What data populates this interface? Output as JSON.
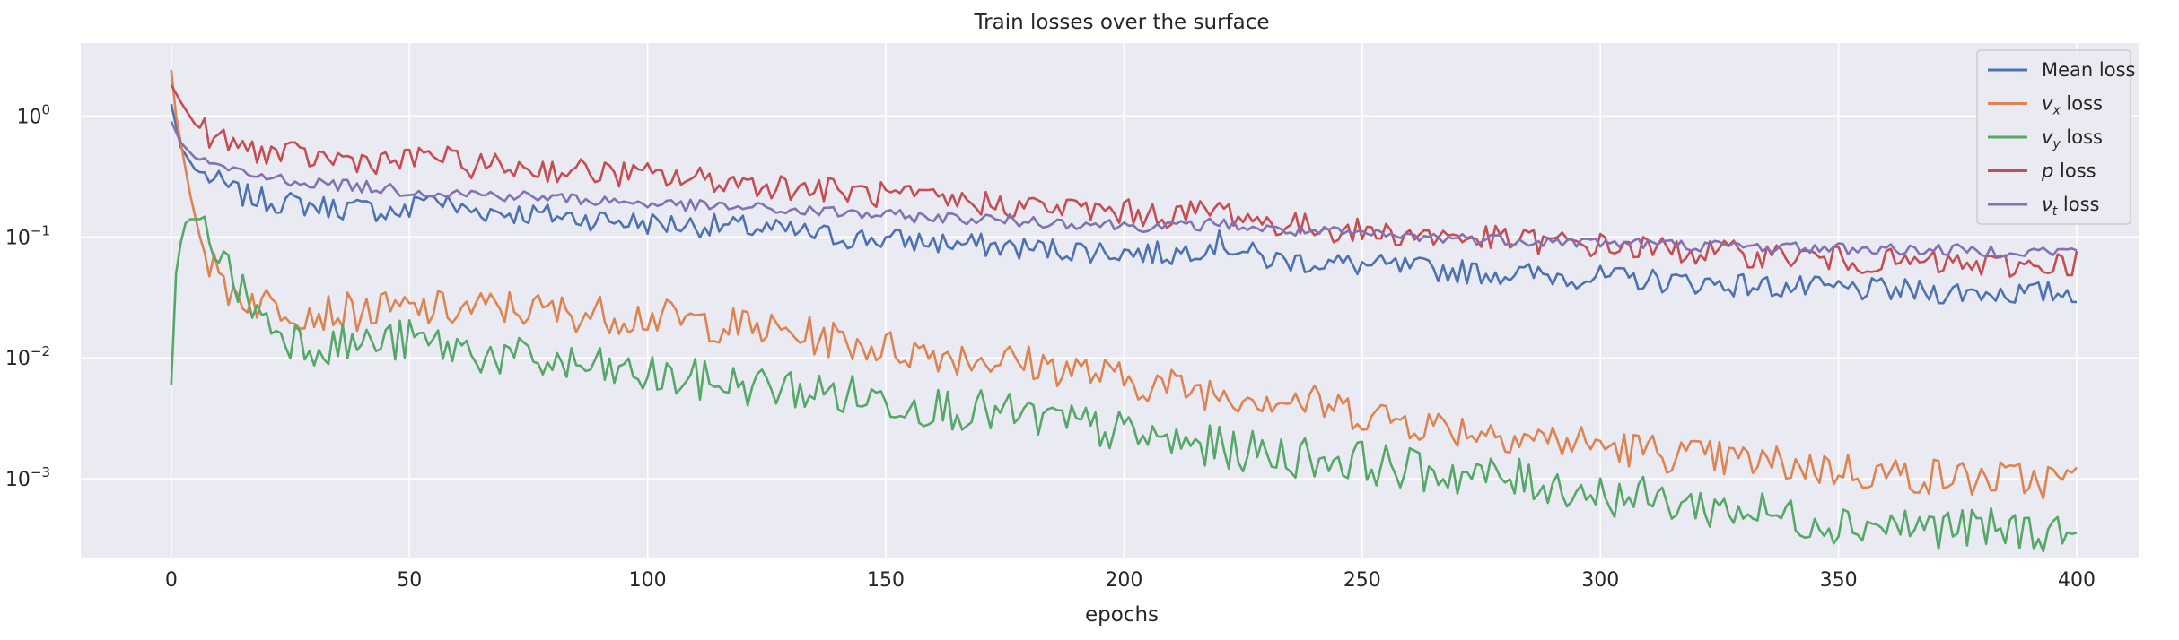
{
  "chart_data": {
    "type": "line",
    "title": "Train losses over the surface",
    "xlabel": "epochs",
    "ylabel": "",
    "yscale": "log",
    "xlim": [
      -19,
      413
    ],
    "ylim": [
      0.00022,
      4
    ],
    "grid": true,
    "legend_position": "top-right",
    "x_ticks": [
      0,
      50,
      100,
      150,
      200,
      250,
      300,
      350,
      400
    ],
    "y_ticks": [
      {
        "value": 1,
        "label": "10",
        "exp": "0"
      },
      {
        "value": 0.1,
        "label": "10",
        "exp": "−1"
      },
      {
        "value": 0.01,
        "label": "10",
        "exp": "−2"
      },
      {
        "value": 0.001,
        "label": "10",
        "exp": "−3"
      }
    ],
    "series": [
      {
        "key": "mean",
        "label": "Mean loss",
        "sym": "",
        "sub": "",
        "color": "#4c72b0",
        "points": [
          [
            0,
            1.25
          ],
          [
            2,
            0.55
          ],
          [
            5,
            0.36
          ],
          [
            10,
            0.28
          ],
          [
            15,
            0.22
          ],
          [
            20,
            0.2
          ],
          [
            30,
            0.18
          ],
          [
            40,
            0.17
          ],
          [
            50,
            0.16
          ],
          [
            53,
            0.23
          ],
          [
            60,
            0.17
          ],
          [
            70,
            0.16
          ],
          [
            80,
            0.15
          ],
          [
            90,
            0.14
          ],
          [
            100,
            0.13
          ],
          [
            110,
            0.125
          ],
          [
            120,
            0.12
          ],
          [
            130,
            0.11
          ],
          [
            140,
            0.1
          ],
          [
            150,
            0.095
          ],
          [
            160,
            0.09
          ],
          [
            170,
            0.085
          ],
          [
            180,
            0.08
          ],
          [
            190,
            0.078
          ],
          [
            200,
            0.075
          ],
          [
            210,
            0.072
          ],
          [
            220,
            0.09
          ],
          [
            230,
            0.065
          ],
          [
            240,
            0.062
          ],
          [
            250,
            0.058
          ],
          [
            260,
            0.055
          ],
          [
            270,
            0.052
          ],
          [
            280,
            0.05
          ],
          [
            290,
            0.048
          ],
          [
            300,
            0.046
          ],
          [
            310,
            0.044
          ],
          [
            320,
            0.042
          ],
          [
            330,
            0.04
          ],
          [
            340,
            0.038
          ],
          [
            350,
            0.037
          ],
          [
            360,
            0.036
          ],
          [
            370,
            0.035
          ],
          [
            380,
            0.035
          ],
          [
            390,
            0.034
          ],
          [
            400,
            0.035
          ]
        ]
      },
      {
        "key": "vx",
        "label": "",
        "sym": "v",
        "sub": "x",
        "color": "#dd8452",
        "points": [
          [
            0,
            2.4
          ],
          [
            1,
            1.0
          ],
          [
            2,
            0.6
          ],
          [
            4,
            0.22
          ],
          [
            6,
            0.1
          ],
          [
            8,
            0.06
          ],
          [
            10,
            0.045
          ],
          [
            12,
            0.038
          ],
          [
            15,
            0.032
          ],
          [
            20,
            0.028
          ],
          [
            30,
            0.024
          ],
          [
            40,
            0.024
          ],
          [
            50,
            0.025
          ],
          [
            60,
            0.025
          ],
          [
            70,
            0.026
          ],
          [
            80,
            0.024
          ],
          [
            90,
            0.023
          ],
          [
            100,
            0.022
          ],
          [
            110,
            0.02
          ],
          [
            120,
            0.018
          ],
          [
            130,
            0.016
          ],
          [
            140,
            0.014
          ],
          [
            150,
            0.012
          ],
          [
            160,
            0.011
          ],
          [
            170,
            0.01
          ],
          [
            180,
            0.009
          ],
          [
            190,
            0.008
          ],
          [
            200,
            0.0065
          ],
          [
            210,
            0.0058
          ],
          [
            220,
            0.0052
          ],
          [
            230,
            0.0048
          ],
          [
            240,
            0.0042
          ],
          [
            250,
            0.0035
          ],
          [
            260,
            0.003
          ],
          [
            270,
            0.0026
          ],
          [
            280,
            0.0024
          ],
          [
            290,
            0.0021
          ],
          [
            300,
            0.0019
          ],
          [
            310,
            0.0017
          ],
          [
            320,
            0.0015
          ],
          [
            330,
            0.0014
          ],
          [
            340,
            0.0013
          ],
          [
            350,
            0.0012
          ],
          [
            360,
            0.0011
          ],
          [
            370,
            0.00105
          ],
          [
            380,
            0.001
          ],
          [
            390,
            0.00098
          ],
          [
            400,
            0.00097
          ]
        ]
      },
      {
        "key": "vy",
        "label": "",
        "sym": "v",
        "sub": "y",
        "color": "#55a868",
        "points": [
          [
            0,
            0.006
          ],
          [
            1,
            0.05
          ],
          [
            2,
            0.09
          ],
          [
            3,
            0.13
          ],
          [
            4,
            0.14
          ],
          [
            6,
            0.14
          ],
          [
            8,
            0.11
          ],
          [
            10,
            0.08
          ],
          [
            12,
            0.05
          ],
          [
            15,
            0.035
          ],
          [
            20,
            0.02
          ],
          [
            25,
            0.015
          ],
          [
            30,
            0.013
          ],
          [
            40,
            0.013
          ],
          [
            50,
            0.014
          ],
          [
            60,
            0.012
          ],
          [
            70,
            0.01
          ],
          [
            80,
            0.009
          ],
          [
            90,
            0.008
          ],
          [
            100,
            0.007
          ],
          [
            110,
            0.0065
          ],
          [
            120,
            0.006
          ],
          [
            130,
            0.0055
          ],
          [
            140,
            0.005
          ],
          [
            150,
            0.0045
          ],
          [
            160,
            0.004
          ],
          [
            170,
            0.0036
          ],
          [
            180,
            0.0032
          ],
          [
            190,
            0.0028
          ],
          [
            200,
            0.0024
          ],
          [
            210,
            0.002
          ],
          [
            220,
            0.0018
          ],
          [
            230,
            0.0016
          ],
          [
            240,
            0.0015
          ],
          [
            250,
            0.0014
          ],
          [
            260,
            0.0012
          ],
          [
            270,
            0.0011
          ],
          [
            280,
            0.001
          ],
          [
            290,
            0.0009
          ],
          [
            300,
            0.00075
          ],
          [
            310,
            0.00068
          ],
          [
            320,
            0.0006
          ],
          [
            330,
            0.00055
          ],
          [
            340,
            0.00048
          ],
          [
            350,
            0.00044
          ],
          [
            360,
            0.00042
          ],
          [
            370,
            0.0004
          ],
          [
            380,
            0.00038
          ],
          [
            390,
            0.00037
          ],
          [
            400,
            0.00037
          ]
        ]
      },
      {
        "key": "p",
        "label": "",
        "sym": "p",
        "sub": "",
        "color": "#c44e52",
        "points": [
          [
            0,
            1.8
          ],
          [
            2,
            1.3
          ],
          [
            5,
            0.85
          ],
          [
            10,
            0.62
          ],
          [
            15,
            0.55
          ],
          [
            20,
            0.5
          ],
          [
            30,
            0.45
          ],
          [
            40,
            0.43
          ],
          [
            50,
            0.42
          ],
          [
            55,
            0.5
          ],
          [
            60,
            0.4
          ],
          [
            70,
            0.38
          ],
          [
            80,
            0.36
          ],
          [
            90,
            0.34
          ],
          [
            100,
            0.32
          ],
          [
            110,
            0.3
          ],
          [
            120,
            0.28
          ],
          [
            130,
            0.26
          ],
          [
            140,
            0.24
          ],
          [
            150,
            0.22
          ],
          [
            160,
            0.2
          ],
          [
            170,
            0.19
          ],
          [
            180,
            0.18
          ],
          [
            190,
            0.17
          ],
          [
            200,
            0.16
          ],
          [
            210,
            0.15
          ],
          [
            220,
            0.17
          ],
          [
            230,
            0.13
          ],
          [
            240,
            0.12
          ],
          [
            250,
            0.11
          ],
          [
            260,
            0.105
          ],
          [
            270,
            0.1
          ],
          [
            280,
            0.095
          ],
          [
            290,
            0.09
          ],
          [
            300,
            0.085
          ],
          [
            310,
            0.08
          ],
          [
            320,
            0.075
          ],
          [
            330,
            0.072
          ],
          [
            340,
            0.07
          ],
          [
            350,
            0.065
          ],
          [
            360,
            0.062
          ],
          [
            370,
            0.06
          ],
          [
            380,
            0.058
          ],
          [
            390,
            0.058
          ],
          [
            400,
            0.062
          ]
        ]
      },
      {
        "key": "nut",
        "label": "",
        "sym": "ν",
        "sub": "t",
        "color": "#8172b3",
        "points": [
          [
            0,
            0.9
          ],
          [
            2,
            0.6
          ],
          [
            5,
            0.45
          ],
          [
            10,
            0.38
          ],
          [
            15,
            0.33
          ],
          [
            20,
            0.31
          ],
          [
            30,
            0.28
          ],
          [
            40,
            0.26
          ],
          [
            50,
            0.24
          ],
          [
            60,
            0.23
          ],
          [
            70,
            0.22
          ],
          [
            80,
            0.21
          ],
          [
            90,
            0.2
          ],
          [
            100,
            0.19
          ],
          [
            110,
            0.18
          ],
          [
            120,
            0.175
          ],
          [
            130,
            0.165
          ],
          [
            140,
            0.16
          ],
          [
            150,
            0.15
          ],
          [
            160,
            0.145
          ],
          [
            170,
            0.14
          ],
          [
            180,
            0.135
          ],
          [
            190,
            0.13
          ],
          [
            200,
            0.125
          ],
          [
            210,
            0.12
          ],
          [
            220,
            0.13
          ],
          [
            230,
            0.115
          ],
          [
            240,
            0.11
          ],
          [
            250,
            0.105
          ],
          [
            260,
            0.1
          ],
          [
            270,
            0.098
          ],
          [
            280,
            0.095
          ],
          [
            290,
            0.092
          ],
          [
            300,
            0.09
          ],
          [
            310,
            0.088
          ],
          [
            320,
            0.085
          ],
          [
            330,
            0.083
          ],
          [
            340,
            0.082
          ],
          [
            350,
            0.08
          ],
          [
            360,
            0.079
          ],
          [
            370,
            0.078
          ],
          [
            380,
            0.077
          ],
          [
            390,
            0.076
          ],
          [
            400,
            0.076
          ]
        ]
      }
    ]
  }
}
